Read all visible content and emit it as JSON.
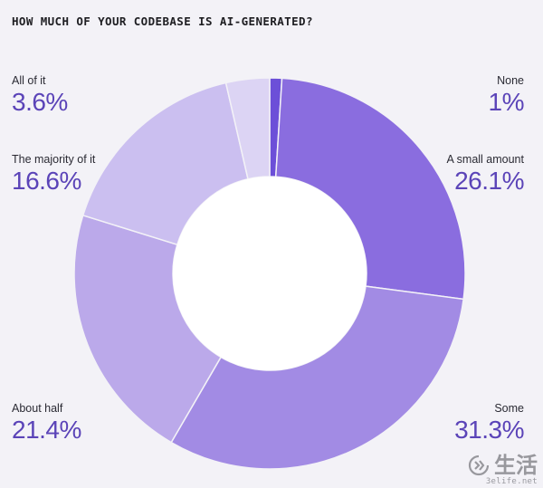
{
  "chart_data": {
    "type": "pie",
    "title": "HOW MUCH OF YOUR CODEBASE IS AI-GENERATED?",
    "donut": true,
    "start": "top, clockwise",
    "slices": [
      {
        "label": "None",
        "value": 1,
        "display": "1%",
        "color": "#6c4fd8"
      },
      {
        "label": "A small amount",
        "value": 26.1,
        "display": "26.1%",
        "color": "#8a6ddf"
      },
      {
        "label": "Some",
        "value": 31.3,
        "display": "31.3%",
        "color": "#a28be4"
      },
      {
        "label": "About half",
        "value": 21.4,
        "display": "21.4%",
        "color": "#bba9ea"
      },
      {
        "label": "The majority of it",
        "value": 16.6,
        "display": "16.6%",
        "color": "#cbbff0"
      },
      {
        "label": "All of it",
        "value": 3.6,
        "display": "3.6%",
        "color": "#dcd4f4"
      }
    ]
  },
  "watermark": {
    "text": "生活",
    "url": "3elife.net"
  }
}
